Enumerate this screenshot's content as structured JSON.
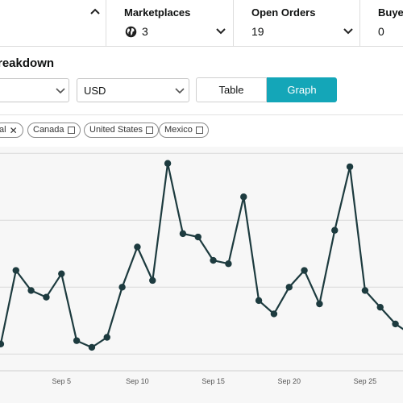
{
  "summary": {
    "marketplaces": {
      "label": "Marketplaces",
      "value": "3"
    },
    "open_orders": {
      "label": "Open Orders",
      "value": "19"
    },
    "buyers": {
      "label": "Buyer",
      "value": "0"
    }
  },
  "breakdown": {
    "title": "reakdown",
    "currency": "USD",
    "view_toggle": {
      "table": "Table",
      "graph": "Graph",
      "selected": "Graph"
    }
  },
  "filters": [
    {
      "label": "al",
      "state": "removable"
    },
    {
      "label": "Canada",
      "state": "unchecked"
    },
    {
      "label": "United States",
      "state": "unchecked"
    },
    {
      "label": "Mexico",
      "state": "unchecked"
    }
  ],
  "colors": {
    "accent": "#14a6b8",
    "line": "#1d3b3f"
  },
  "chart_data": {
    "type": "line",
    "x_ticks": [
      "Sep 5",
      "Sep 10",
      "Sep 15",
      "Sep 20",
      "Sep 25"
    ],
    "x": [
      1,
      2,
      3,
      4,
      5,
      6,
      7,
      8,
      9,
      10,
      11,
      12,
      13,
      14,
      15,
      16,
      17,
      18,
      19,
      20,
      21,
      22,
      23,
      24,
      25,
      26,
      27,
      28
    ],
    "y": [
      3,
      25,
      19,
      17,
      24,
      4,
      2,
      5,
      20,
      32,
      22,
      57,
      36,
      35,
      28,
      27,
      47,
      16,
      12,
      20,
      25,
      15,
      37,
      56,
      19,
      14,
      9,
      6
    ],
    "ylim": [
      -5,
      62
    ],
    "xlim": [
      0.95,
      27.5
    ],
    "grid": "horizontal"
  }
}
